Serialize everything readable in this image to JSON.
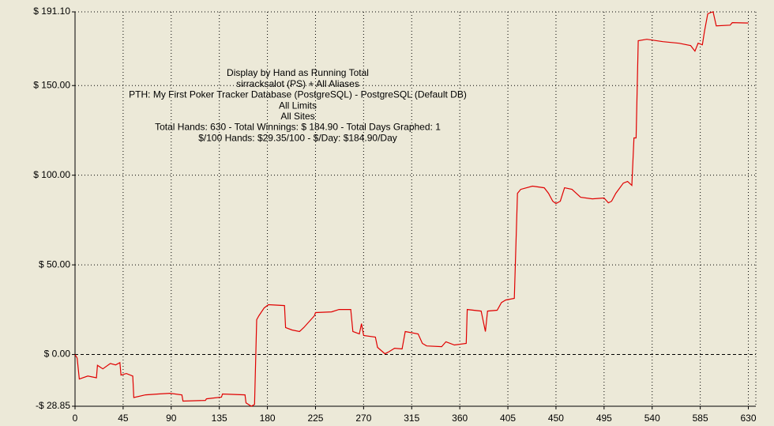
{
  "chart_data": {
    "type": "line",
    "annotations": [
      "Display by Hand as Running Total",
      "sirracksalot (PS) + All Aliases",
      "PTH: My First Poker Tracker Database (PostgreSQL) - PostgreSQL (Default DB)",
      "All Limits",
      "All Sites",
      "Total Hands: 630 - Total Winnings: $ 184.90 - Total Days Graphed: 1",
      "$/100 Hands: $29.35/100 - $/Day: $184.90/Day"
    ],
    "color": "#e00000",
    "grid": true,
    "xlim": [
      0,
      637
    ],
    "ylim": [
      -28.85,
      191.1
    ],
    "xticks": [
      0,
      45,
      90,
      135,
      180,
      225,
      270,
      315,
      360,
      405,
      450,
      495,
      540,
      585,
      630
    ],
    "yticks": [
      {
        "value": -28.85,
        "label": "-$ 28.85"
      },
      {
        "value": 0,
        "label": "$ 0.00"
      },
      {
        "value": 50,
        "label": "$ 50.00"
      },
      {
        "value": 100,
        "label": "$ 100.00"
      },
      {
        "value": 150,
        "label": "$ 150.00"
      },
      {
        "value": 191.1,
        "label": "$ 191.10"
      }
    ],
    "x": [
      0,
      2,
      4,
      12,
      20,
      21,
      26,
      33,
      38,
      42,
      43,
      48,
      54,
      55,
      66,
      78,
      89,
      100,
      101,
      122,
      123,
      137,
      138,
      159,
      160,
      165,
      168,
      170,
      172,
      177,
      181,
      196,
      197,
      203,
      210,
      214,
      224,
      225,
      240,
      247,
      258,
      260,
      266,
      268,
      270,
      281,
      283,
      290,
      293,
      299,
      306,
      309,
      321,
      325,
      329,
      343,
      347,
      355,
      366,
      367,
      380,
      384,
      386,
      395,
      399,
      403,
      411,
      414,
      417,
      428,
      439,
      443,
      447,
      450,
      454,
      458,
      465,
      473,
      484,
      495,
      499,
      502,
      506,
      513,
      517,
      521,
      523,
      525,
      527,
      535,
      550,
      565,
      576,
      580,
      583,
      587,
      589,
      592,
      595,
      597,
      600,
      613,
      615,
      630
    ],
    "values": [
      0,
      -2,
      -13.7,
      -12,
      -13,
      -6,
      -8,
      -5,
      -5.8,
      -4.5,
      -11.5,
      -10.6,
      -12,
      -24,
      -22.5,
      -22,
      -21.6,
      -22.5,
      -26,
      -25.6,
      -24.7,
      -23.8,
      -22,
      -22.5,
      -27,
      -28.85,
      -27.8,
      19.4,
      21.6,
      26,
      27.8,
      27.3,
      15,
      13.7,
      12.8,
      15,
      21.6,
      23.4,
      23.8,
      25.1,
      25.1,
      12.8,
      11.5,
      17.2,
      10.6,
      9.7,
      4,
      0.4,
      1.3,
      3.5,
      3.1,
      12.8,
      11.5,
      6.2,
      4.8,
      4.4,
      7.1,
      5.3,
      6.2,
      25.1,
      24.2,
      12.8,
      24.2,
      24.7,
      29,
      30.4,
      31.3,
      89.9,
      92.1,
      93.9,
      93,
      89.9,
      85.5,
      84.2,
      85.5,
      93,
      92.1,
      87.7,
      86.8,
      87.3,
      84.6,
      85.5,
      89.9,
      95.6,
      96.5,
      94.3,
      120.8,
      120.8,
      175,
      175.8,
      174.5,
      173.6,
      172.3,
      169.2,
      173.6,
      172.7,
      180.3,
      190,
      190.8,
      191.1,
      183.3,
      183.7,
      185.1,
      184.9
    ]
  }
}
